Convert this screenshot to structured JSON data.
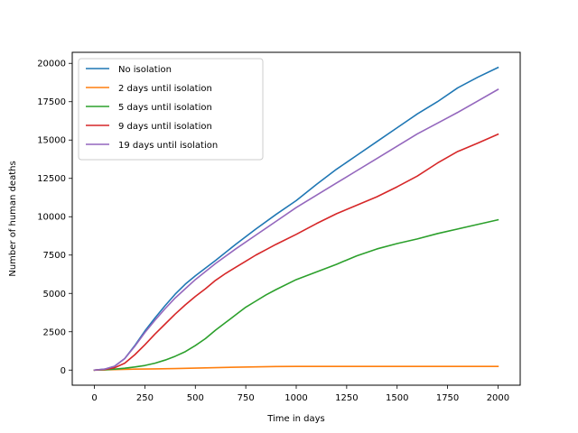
{
  "chart_data": {
    "type": "line",
    "title": "",
    "xlabel": "Time in days",
    "ylabel": "Number of human deaths",
    "xlim": [
      -110,
      2110
    ],
    "ylim": [
      -985,
      20720
    ],
    "xticks": [
      0,
      250,
      500,
      750,
      1000,
      1250,
      1500,
      1750,
      2000
    ],
    "yticks": [
      0,
      2500,
      5000,
      7500,
      10000,
      12500,
      15000,
      17500,
      20000
    ],
    "grid": false,
    "legend_position": "upper left",
    "series": [
      {
        "name": "No isolation",
        "color": "#1f77b4",
        "x": [
          0,
          50,
          100,
          150,
          200,
          250,
          300,
          350,
          400,
          450,
          500,
          600,
          700,
          800,
          900,
          1000,
          1100,
          1200,
          1300,
          1400,
          1500,
          1600,
          1700,
          1800,
          1900,
          2000
        ],
        "y": [
          0,
          60,
          250,
          750,
          1600,
          2550,
          3400,
          4200,
          4950,
          5600,
          6150,
          7150,
          8200,
          9200,
          10150,
          11050,
          12100,
          13100,
          14000,
          14900,
          15800,
          16700,
          17500,
          18400,
          19100,
          19730
        ]
      },
      {
        "name": "2 days until isolation",
        "color": "#ff7f0e",
        "x": [
          0,
          100,
          200,
          300,
          400,
          500,
          600,
          700,
          800,
          900,
          1000,
          1200,
          1400,
          1600,
          1800,
          2000
        ],
        "y": [
          0,
          30,
          60,
          80,
          100,
          130,
          160,
          190,
          210,
          230,
          240,
          240,
          240,
          240,
          240,
          240
        ]
      },
      {
        "name": "5 days until isolation",
        "color": "#2ca02c",
        "x": [
          0,
          50,
          100,
          150,
          200,
          250,
          300,
          350,
          400,
          450,
          500,
          550,
          600,
          650,
          700,
          750,
          800,
          850,
          900,
          1000,
          1100,
          1200,
          1300,
          1400,
          1500,
          1600,
          1700,
          1800,
          1900,
          2000
        ],
        "y": [
          0,
          20,
          60,
          120,
          200,
          300,
          450,
          650,
          900,
          1200,
          1600,
          2050,
          2600,
          3100,
          3600,
          4100,
          4500,
          4900,
          5250,
          5900,
          6400,
          6900,
          7450,
          7900,
          8250,
          8550,
          8900,
          9200,
          9500,
          9800
        ]
      },
      {
        "name": "9 days until isolation",
        "color": "#d62728",
        "x": [
          0,
          50,
          100,
          150,
          200,
          250,
          300,
          350,
          400,
          450,
          500,
          550,
          600,
          650,
          700,
          750,
          800,
          850,
          900,
          1000,
          1100,
          1200,
          1300,
          1400,
          1500,
          1600,
          1700,
          1800,
          1900,
          2000
        ],
        "y": [
          0,
          40,
          150,
          450,
          1000,
          1650,
          2350,
          3000,
          3650,
          4250,
          4800,
          5300,
          5850,
          6300,
          6700,
          7100,
          7500,
          7850,
          8200,
          8850,
          9550,
          10200,
          10750,
          11300,
          11950,
          12650,
          13500,
          14250,
          14800,
          15380
        ]
      },
      {
        "name": "19 days until isolation",
        "color": "#9467bd",
        "x": [
          0,
          50,
          100,
          150,
          200,
          250,
          300,
          350,
          400,
          450,
          500,
          600,
          700,
          800,
          900,
          1000,
          1100,
          1200,
          1300,
          1400,
          1500,
          1600,
          1700,
          1800,
          1900,
          2000
        ],
        "y": [
          0,
          60,
          250,
          750,
          1550,
          2450,
          3250,
          4000,
          4700,
          5300,
          5900,
          6950,
          7900,
          8800,
          9700,
          10600,
          11400,
          12200,
          13000,
          13800,
          14600,
          15400,
          16100,
          16800,
          17550,
          18300
        ]
      }
    ]
  }
}
